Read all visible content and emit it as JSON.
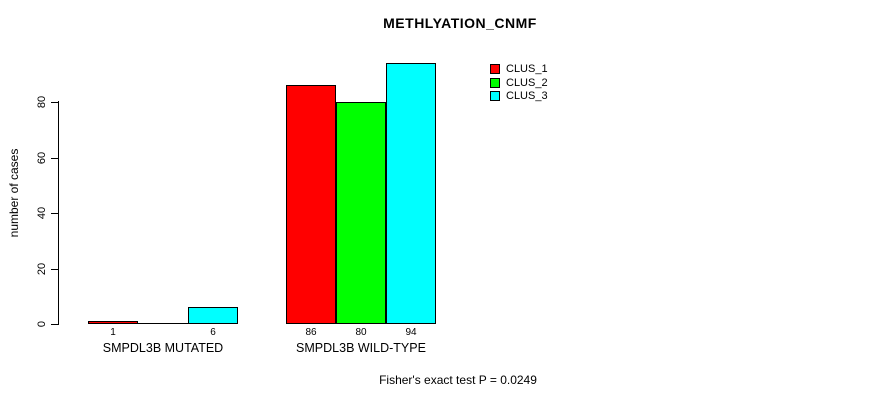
{
  "chart_data": {
    "type": "bar",
    "title": "METHLYATION_CNMF",
    "ylabel": "number of cases",
    "xlabel": "",
    "ylim": [
      0,
      80
    ],
    "yticks": [
      "0",
      "20",
      "40",
      "60",
      "80"
    ],
    "grid": false,
    "legend_position": "top-right",
    "background_color": "#ffffff",
    "axis_color": "#000000",
    "categories": [
      "SMPDL3B MUTATED",
      "SMPDL3B WILD-TYPE"
    ],
    "series": [
      {
        "name": "CLUS_1",
        "color": "#ff0000",
        "values": [
          1,
          86
        ]
      },
      {
        "name": "CLUS_2",
        "color": "#00ff00",
        "values": [
          0,
          80
        ]
      },
      {
        "name": "CLUS_3",
        "color": "#00ffff",
        "values": [
          6,
          94
        ]
      }
    ],
    "groups": [
      {
        "label": "SMPDL3B MUTATED",
        "bars": [
          {
            "cluster": "CLUS_1",
            "value": 1,
            "label": "1"
          },
          {
            "cluster": "CLUS_2",
            "value": 0,
            "label": ""
          },
          {
            "cluster": "CLUS_3",
            "value": 6,
            "label": "6"
          }
        ]
      },
      {
        "label": "SMPDL3B WILD-TYPE",
        "bars": [
          {
            "cluster": "CLUS_1",
            "value": 86,
            "label": "86"
          },
          {
            "cluster": "CLUS_2",
            "value": 80,
            "label": "80"
          },
          {
            "cluster": "CLUS_3",
            "value": 94,
            "label": "94"
          }
        ]
      }
    ],
    "legend": [
      {
        "label": "CLUS_1",
        "color": "#ff0000"
      },
      {
        "label": "CLUS_2",
        "color": "#00ff00"
      },
      {
        "label": "CLUS_3",
        "color": "#00ffff"
      }
    ],
    "annotation": "Fisher's exact test P = 0.0249"
  }
}
